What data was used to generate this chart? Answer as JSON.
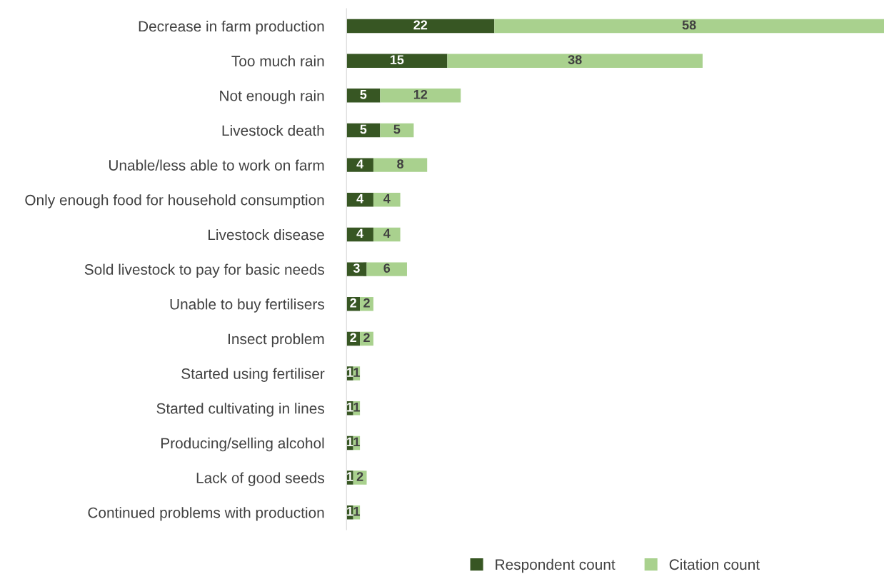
{
  "chart_data": {
    "type": "bar",
    "orientation": "horizontal",
    "stacked": true,
    "data_labels": true,
    "legend": "bottom",
    "grid": false,
    "categories": [
      "Decrease in farm production",
      "Too much rain",
      "Not enough rain",
      "Livestock death",
      "Unable/less able to work on farm",
      "Only enough food for household consumption",
      "Livestock disease",
      "Sold livestock to pay for basic needs",
      "Unable to buy fertilisers",
      "Insect problem",
      "Started using fertiliser",
      "Started cultivating in lines",
      "Producing/selling alcohol",
      "Lack of good seeds",
      "Continued problems with production"
    ],
    "series": [
      {
        "name": "Respondent count",
        "color": "#375623",
        "values": [
          22,
          15,
          5,
          5,
          4,
          4,
          4,
          3,
          2,
          2,
          1,
          1,
          1,
          1,
          1
        ]
      },
      {
        "name": "Citation count",
        "color": "#a9d18e",
        "values": [
          58,
          38,
          12,
          5,
          8,
          4,
          4,
          6,
          2,
          2,
          1,
          1,
          1,
          2,
          1
        ]
      }
    ]
  }
}
